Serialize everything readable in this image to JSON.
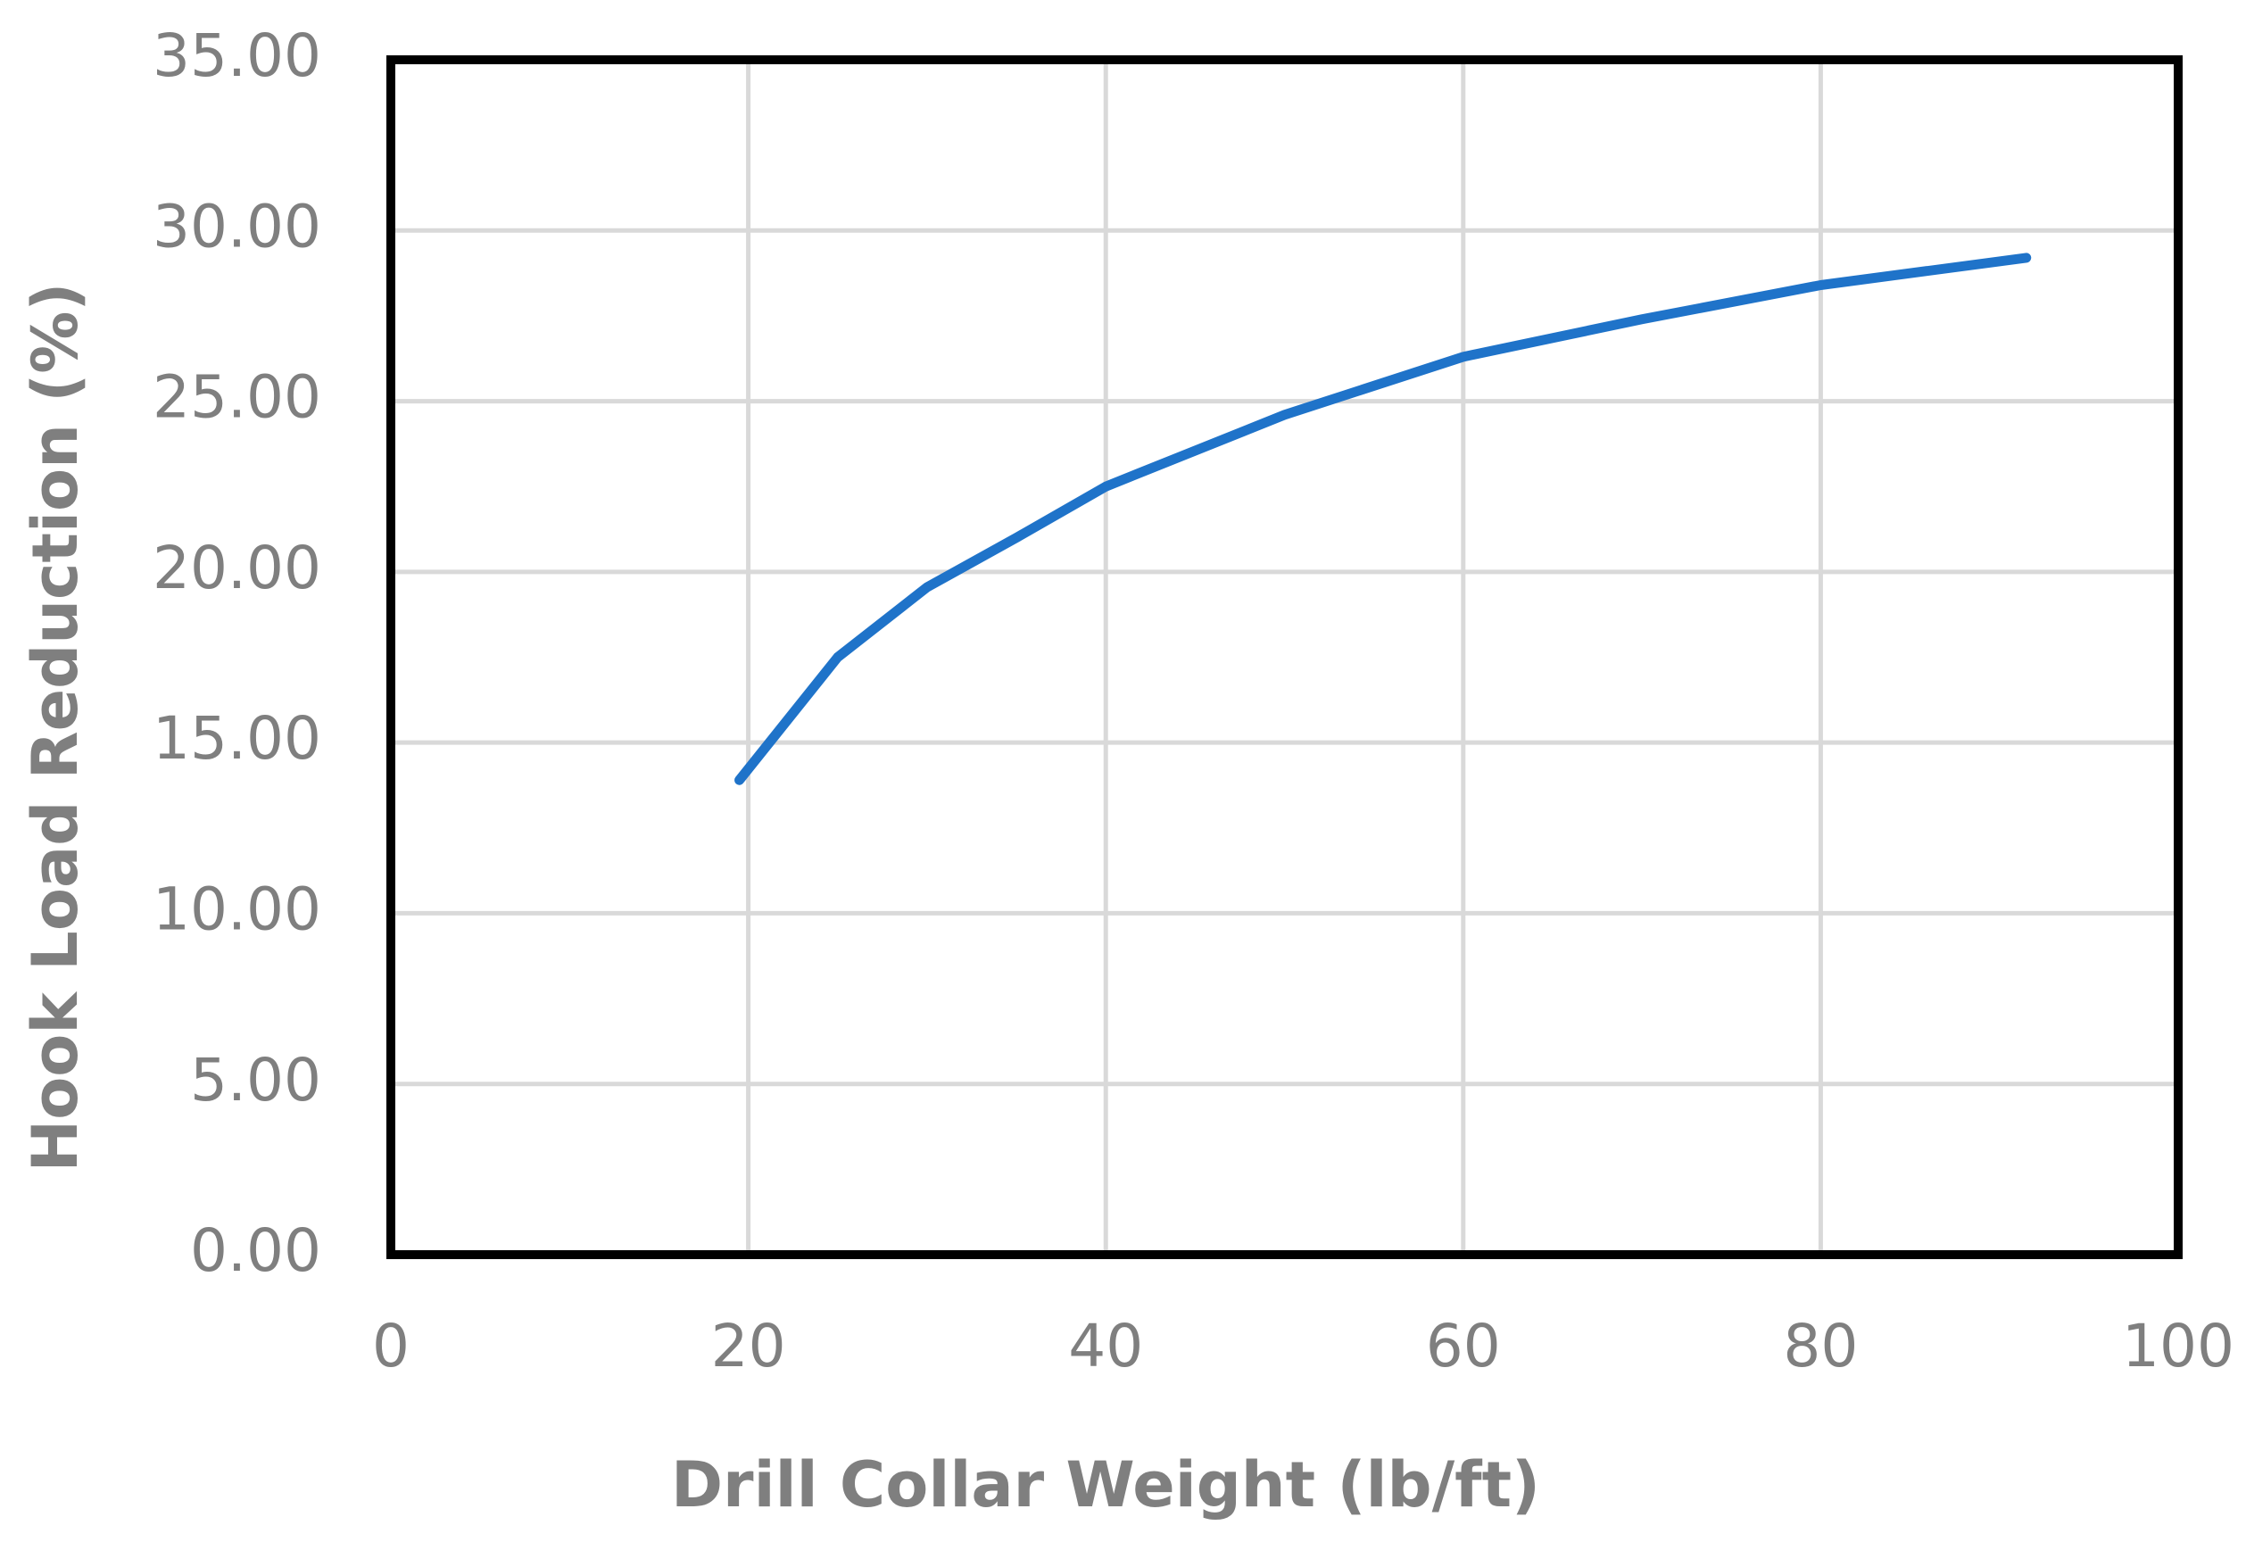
{
  "chart_data": {
    "type": "line",
    "xlabel": "Drill Collar Weight (lb/ft)",
    "ylabel": "Hook Load Reduction (%)",
    "series": [
      {
        "name": "Hook Load Reduction",
        "color": "#1f73c9",
        "x": [
          19.5,
          25,
          30,
          35,
          40,
          50,
          60,
          70,
          80,
          91.5
        ],
        "values": [
          13.9,
          17.5,
          19.55,
          21.0,
          22.5,
          24.6,
          26.3,
          27.4,
          28.4,
          29.2
        ]
      }
    ],
    "xlim": [
      0,
      100
    ],
    "xticks": [
      0,
      20,
      40,
      60,
      80,
      100
    ],
    "ylim": [
      0,
      35
    ],
    "yticks": [
      {
        "value": 0,
        "label": "0.00"
      },
      {
        "value": 5,
        "label": "5.00"
      },
      {
        "value": 10,
        "label": "10.00"
      },
      {
        "value": 15,
        "label": "15.00"
      },
      {
        "value": 20,
        "label": "20.00"
      },
      {
        "value": 25,
        "label": "25.00"
      },
      {
        "value": 30,
        "label": "30.00"
      },
      {
        "value": 35,
        "label": "35.00"
      }
    ],
    "grid": true
  }
}
